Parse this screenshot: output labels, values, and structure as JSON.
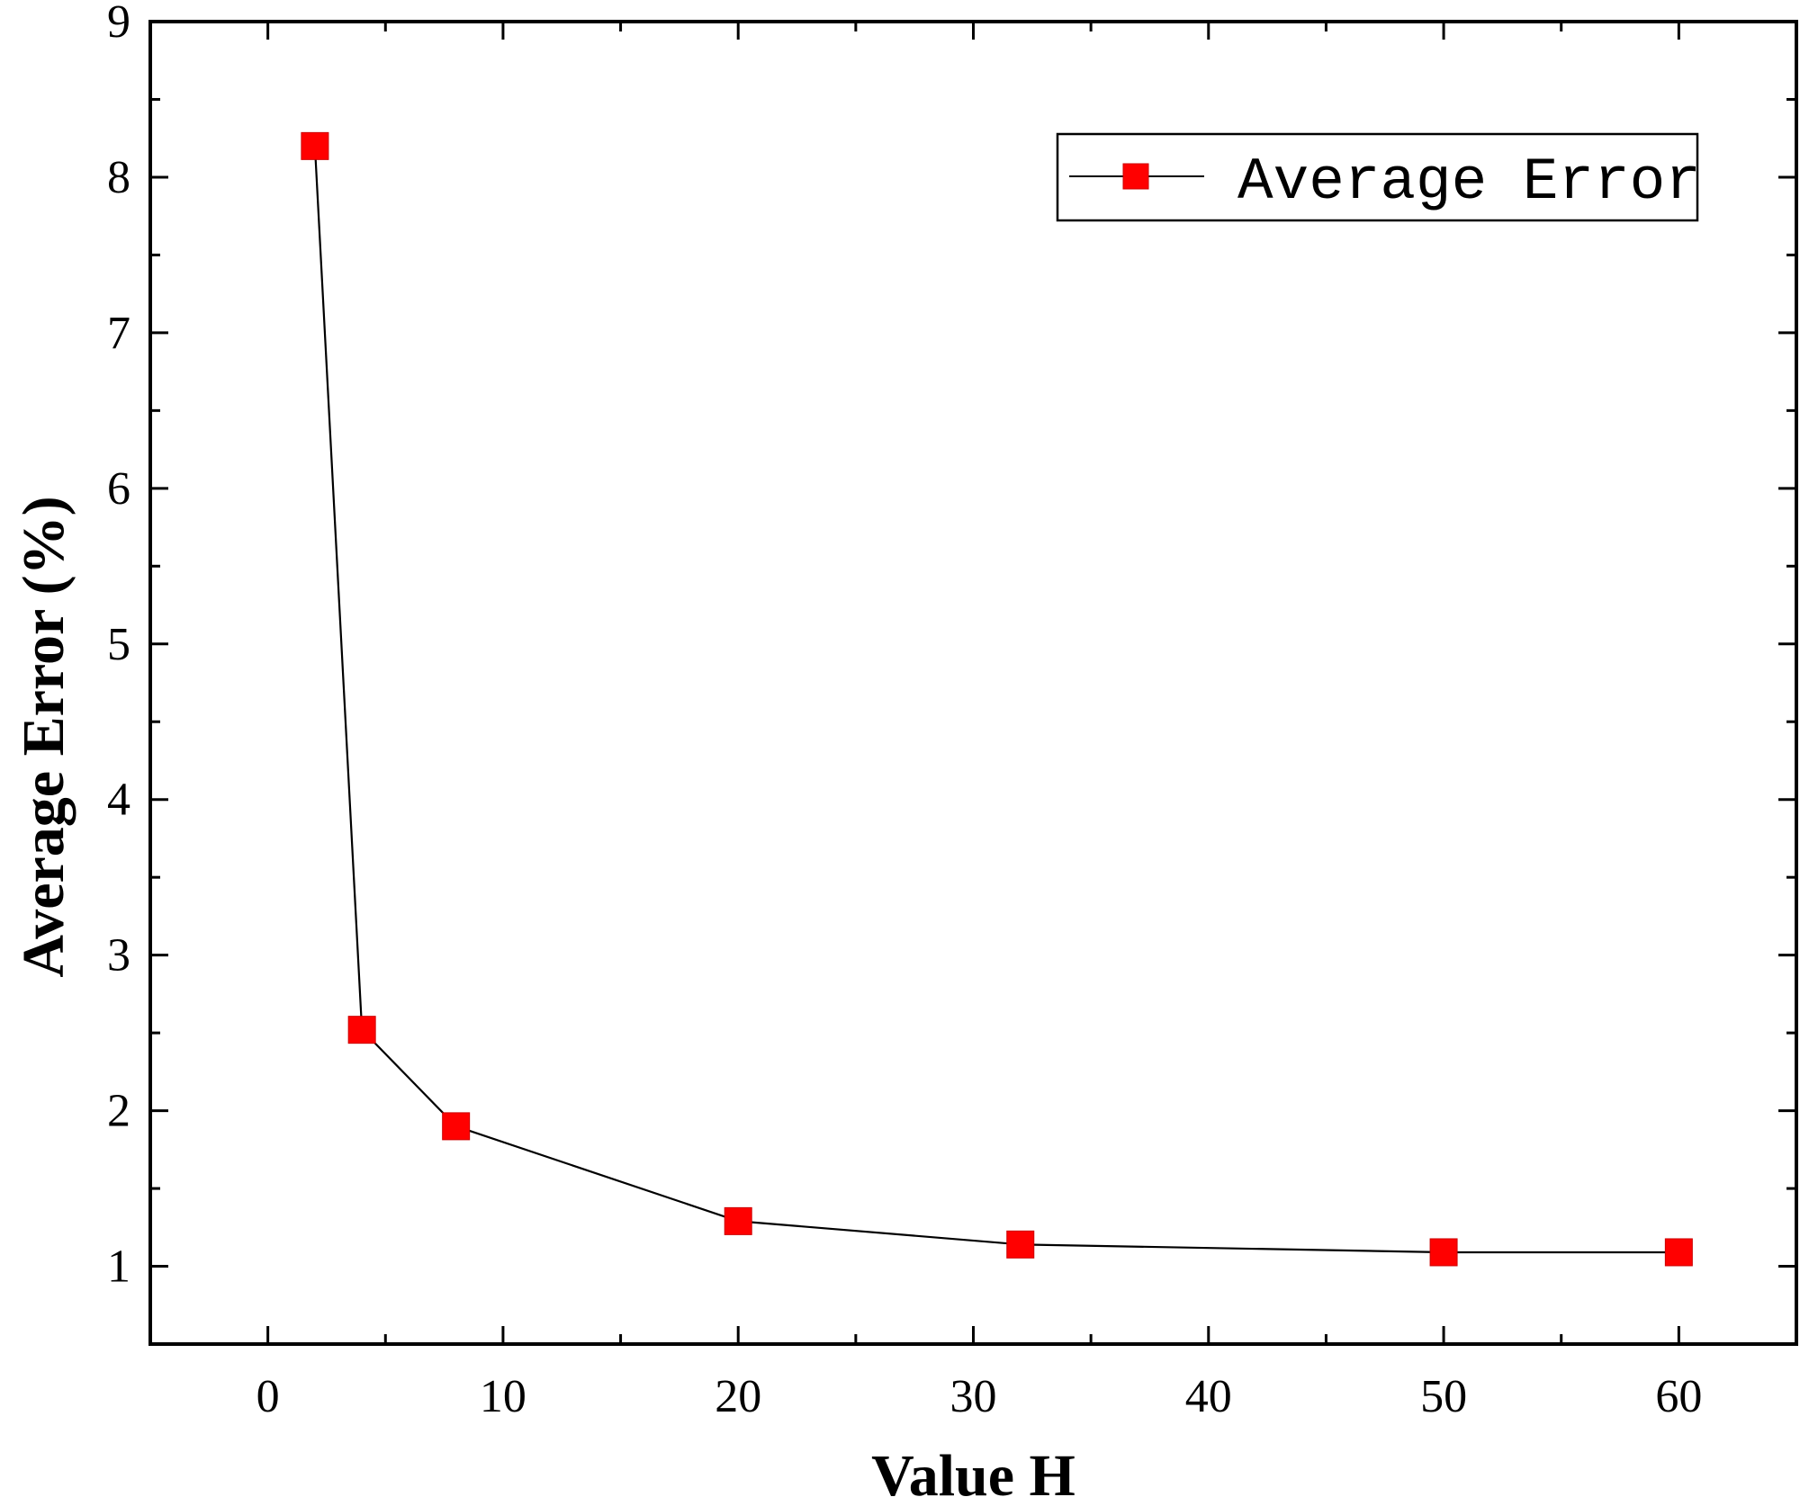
{
  "chart_data": {
    "type": "line",
    "xlabel": "Value H",
    "ylabel": "Average Error (%)",
    "xlim": [
      -5,
      65
    ],
    "ylim": [
      0.5,
      9
    ],
    "x_ticks": [
      0,
      10,
      20,
      30,
      40,
      50,
      60
    ],
    "y_ticks": [
      1,
      2,
      3,
      4,
      5,
      6,
      7,
      8,
      9
    ],
    "x_tick_labels": [
      "0",
      "10",
      "20",
      "30",
      "40",
      "50",
      "60"
    ],
    "y_tick_labels": [
      "1",
      "2",
      "3",
      "4",
      "5",
      "6",
      "7",
      "8",
      "9"
    ],
    "grid": false,
    "legend_position": "top-right",
    "series": [
      {
        "name": "Average Error",
        "x": [
          2,
          4,
          8,
          20,
          32,
          50,
          60
        ],
        "values": [
          8.2,
          2.52,
          1.9,
          1.29,
          1.14,
          1.09,
          1.09
        ],
        "marker": "square",
        "marker_color": "#ff0000",
        "line_color": "#000000"
      }
    ]
  }
}
